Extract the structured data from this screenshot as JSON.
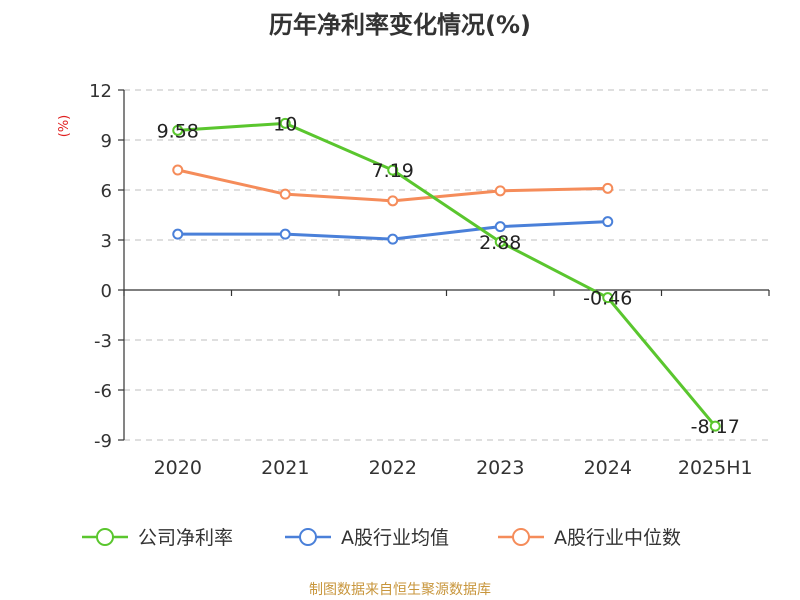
{
  "chart_data": {
    "type": "line",
    "title": "历年净利率变化情况(%)",
    "ylabel": "(%)",
    "xlabel": "",
    "categories": [
      "2020",
      "2021",
      "2022",
      "2023",
      "2024",
      "2025H1"
    ],
    "ylim": [
      -9,
      12
    ],
    "yticks": [
      12,
      9,
      6,
      3,
      0,
      -3,
      -6,
      -9
    ],
    "grid": true,
    "legend_position": "bottom",
    "series": [
      {
        "name": "公司净利率",
        "color": "#5ac62e",
        "values": [
          9.58,
          10,
          7.19,
          2.88,
          -0.46,
          -8.17
        ],
        "labels": [
          "9.58",
          "10",
          "7.19",
          "2.88",
          "-0.46",
          "-8.17"
        ]
      },
      {
        "name": "A股行业均值",
        "color": "#4a80d9",
        "values": [
          3.35,
          3.35,
          3.05,
          3.8,
          4.1,
          null
        ]
      },
      {
        "name": "A股行业中位数",
        "color": "#f58c5a",
        "values": [
          7.2,
          5.75,
          5.35,
          5.95,
          6.1,
          null
        ]
      }
    ]
  },
  "footer": {
    "source": "制图数据来自恒生聚源数据库"
  }
}
